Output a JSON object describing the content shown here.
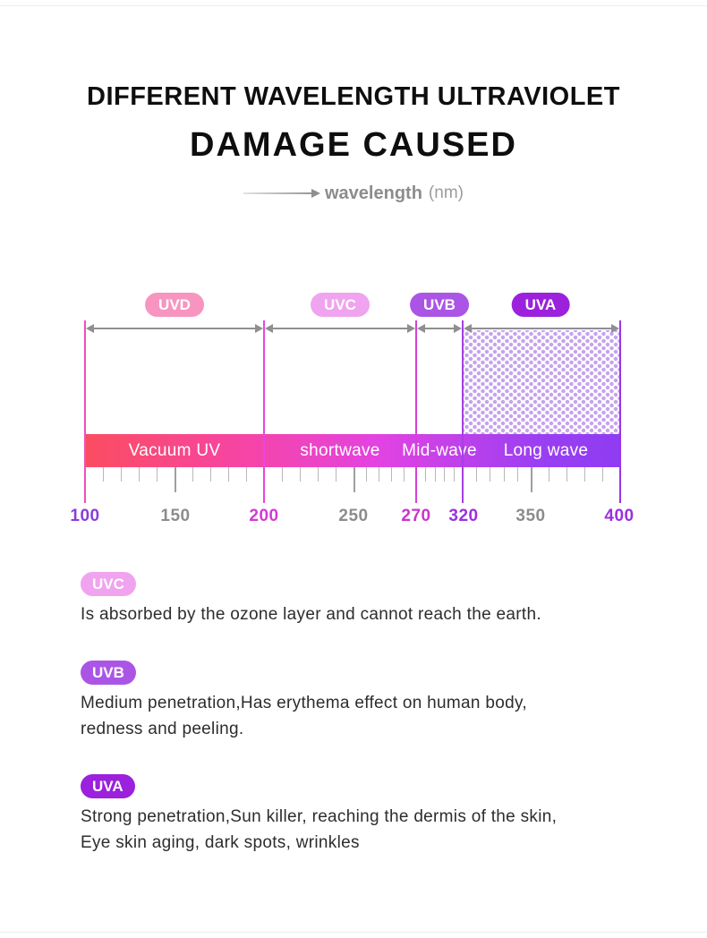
{
  "header": {
    "title_line1": "DIFFERENT WAVELENGTH ULTRAVIOLET",
    "title_line2": "DAMAGE CAUSED",
    "axis_label": "wavelength",
    "axis_unit": "(nm)"
  },
  "chart_data": {
    "type": "table",
    "title": "Different wavelength ultraviolet — damage caused",
    "x_axis": {
      "label": "wavelength (nm)",
      "range": [
        100,
        400
      ],
      "ticks": [
        100,
        150,
        200,
        250,
        270,
        320,
        350,
        400
      ]
    },
    "bands": [
      {
        "name": "UVD",
        "range_nm": [
          100,
          200
        ],
        "wave_label": "Vacuum UV",
        "badge_color": "#f795c0"
      },
      {
        "name": "UVC",
        "range_nm": [
          200,
          270
        ],
        "wave_label": "shortwave",
        "badge_color": "#f0a3ef"
      },
      {
        "name": "UVB",
        "range_nm": [
          270,
          320
        ],
        "wave_label": "Mid-wave",
        "badge_color": "#ab55e6"
      },
      {
        "name": "UVA",
        "range_nm": [
          320,
          400
        ],
        "wave_label": "Long wave",
        "badge_color": "#9b21dc"
      }
    ],
    "bar_gradient": [
      "#fb4d60",
      "#f644a6",
      "#e243e2",
      "#8f3cf2"
    ],
    "uva_region_style": "purple dotted fill between 320 and 400 nm"
  },
  "ruler": {
    "ticks": [
      {
        "label": "100",
        "color": "#8a3ddb"
      },
      {
        "label": "150",
        "color": "#8c8c8c"
      },
      {
        "label": "200",
        "color": "#d23bd2"
      },
      {
        "label": "250",
        "color": "#8c8c8c"
      },
      {
        "label": "270",
        "color": "#c935cf"
      },
      {
        "label": "320",
        "color": "#9a30dd"
      },
      {
        "label": "350",
        "color": "#8c8c8c"
      },
      {
        "label": "400",
        "color": "#9a30dd"
      }
    ]
  },
  "sections": [
    {
      "badge": "UVC",
      "badge_color": "#f0a3ef",
      "lines": [
        "Is absorbed by the ozone layer and cannot reach the earth."
      ]
    },
    {
      "badge": "UVB",
      "badge_color": "#ab55e6",
      "lines": [
        "Medium penetration,Has erythema effect on human body,",
        "redness and peeling."
      ]
    },
    {
      "badge": "UVA",
      "badge_color": "#9b21dc",
      "lines": [
        "Strong penetration,Sun killer, reaching the dermis of the skin,",
        "Eye skin aging, dark spots, wrinkles"
      ]
    }
  ]
}
